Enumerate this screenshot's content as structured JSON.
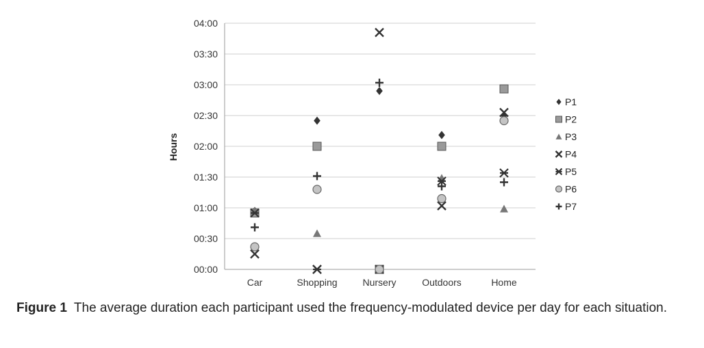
{
  "chart_data": {
    "type": "scatter",
    "categories": [
      "Car",
      "Shopping",
      "Nursery",
      "Outdoors",
      "Home"
    ],
    "ylabel": "Hours",
    "ylim_minutes": [
      0,
      240
    ],
    "yticks": [
      "00:00",
      "00:30",
      "01:00",
      "01:30",
      "02:00",
      "02:30",
      "03:00",
      "03:30",
      "04:00"
    ],
    "grid": true,
    "legend_position": "right",
    "series": [
      {
        "name": "P1",
        "marker": "diamond",
        "values_minutes": [
          57,
          145,
          174,
          131,
          150
        ]
      },
      {
        "name": "P2",
        "marker": "square",
        "values_minutes": [
          55,
          120,
          0,
          120,
          176
        ]
      },
      {
        "name": "P3",
        "marker": "triangle",
        "values_minutes": [
          57,
          35,
          0,
          89,
          59
        ]
      },
      {
        "name": "P4",
        "marker": "x",
        "values_minutes": [
          15,
          0,
          231,
          62,
          153
        ]
      },
      {
        "name": "P5",
        "marker": "star",
        "values_minutes": [
          55,
          0,
          0,
          86,
          94
        ]
      },
      {
        "name": "P6",
        "marker": "circle",
        "values_minutes": [
          22,
          78,
          0,
          69,
          145
        ]
      },
      {
        "name": "P7",
        "marker": "plus",
        "values_minutes": [
          41,
          91,
          182,
          81,
          85
        ]
      }
    ]
  },
  "caption": {
    "label": "Figure 1",
    "text": "The average duration each participant used the frequency-modulated device per day for each situation."
  }
}
